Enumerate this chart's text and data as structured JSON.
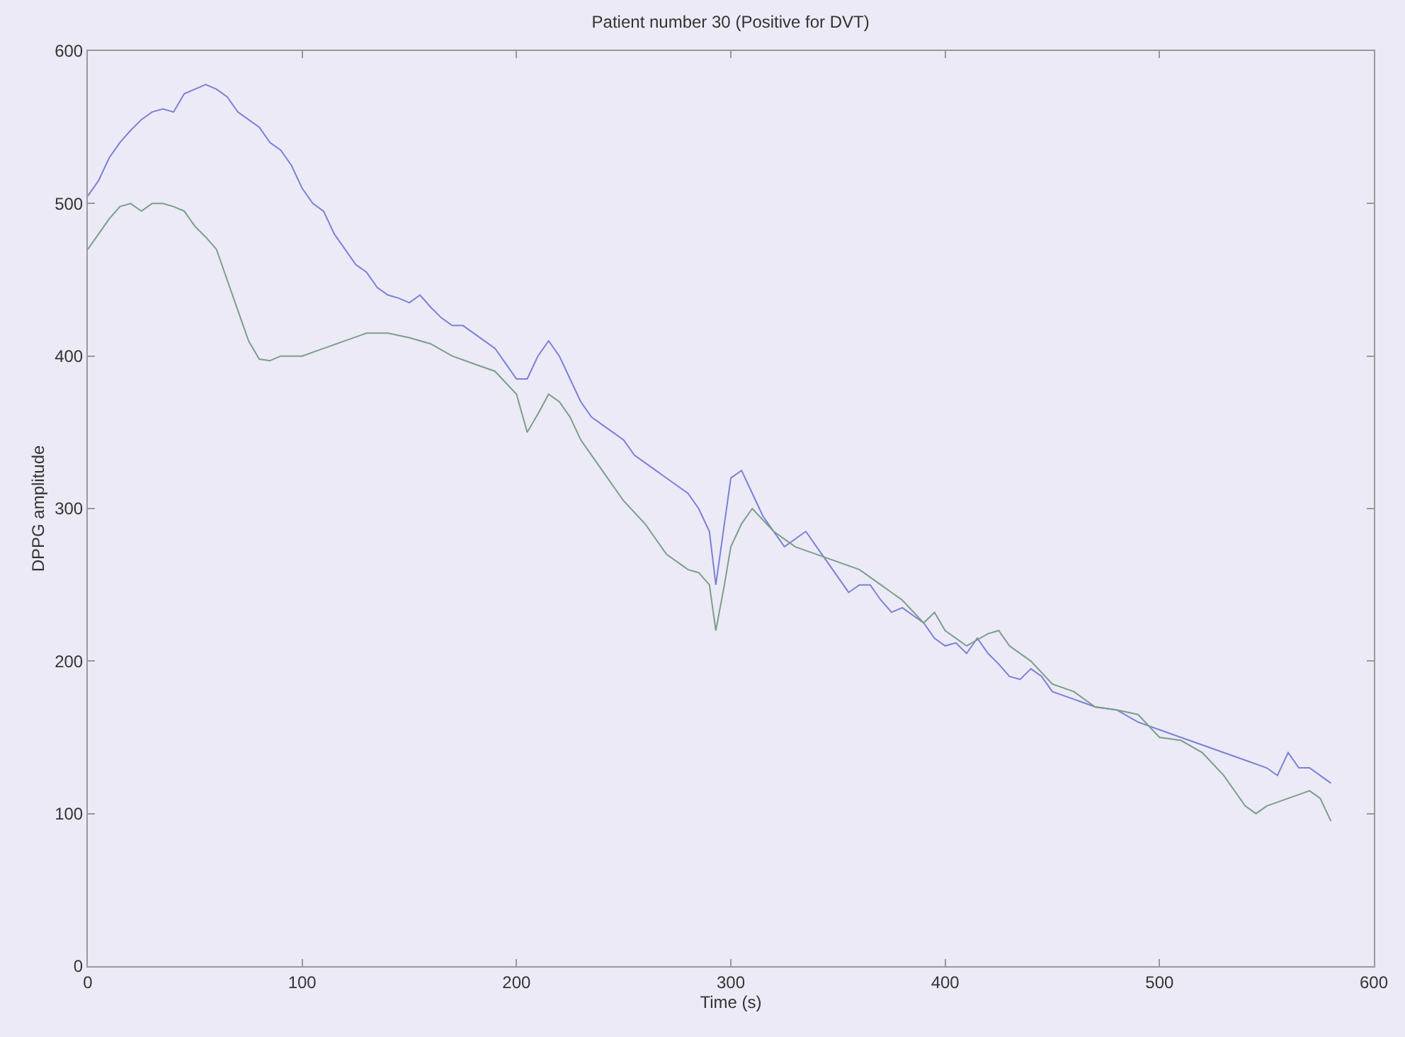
{
  "chart_data": {
    "type": "line",
    "title": "Patient number 30 (Positive for DVT)",
    "xlabel": "Time (s)",
    "ylabel": "DPPG amplitude",
    "xlim": [
      0,
      600
    ],
    "xticks": [
      0,
      100,
      200,
      300,
      400,
      500,
      600
    ],
    "ylim": [
      0,
      600
    ],
    "yticks": [
      0,
      100,
      200,
      300,
      400,
      500,
      600
    ],
    "grid": false,
    "marker": "none",
    "line_style": "solid",
    "series": [
      {
        "color": "#7a80d8",
        "x": [
          0,
          5,
          10,
          15,
          20,
          25,
          30,
          35,
          40,
          45,
          50,
          55,
          60,
          65,
          70,
          75,
          80,
          85,
          90,
          95,
          100,
          105,
          110,
          115,
          120,
          125,
          130,
          135,
          140,
          145,
          150,
          155,
          160,
          165,
          170,
          175,
          180,
          185,
          190,
          195,
          200,
          205,
          210,
          215,
          220,
          225,
          230,
          235,
          240,
          245,
          250,
          255,
          260,
          265,
          270,
          275,
          280,
          285,
          290,
          293,
          297,
          300,
          305,
          310,
          315,
          320,
          325,
          330,
          335,
          340,
          345,
          350,
          355,
          360,
          365,
          370,
          375,
          380,
          385,
          390,
          395,
          400,
          405,
          410,
          415,
          420,
          425,
          430,
          435,
          440,
          445,
          450,
          460,
          470,
          480,
          490,
          500,
          510,
          520,
          530,
          540,
          550,
          555,
          560,
          565,
          570,
          575,
          580
        ],
        "values": [
          505,
          515,
          530,
          540,
          548,
          555,
          560,
          562,
          560,
          572,
          575,
          578,
          575,
          570,
          560,
          555,
          550,
          540,
          535,
          525,
          510,
          500,
          495,
          480,
          470,
          460,
          455,
          445,
          440,
          438,
          435,
          440,
          432,
          425,
          420,
          420,
          415,
          410,
          405,
          395,
          385,
          385,
          400,
          410,
          400,
          385,
          370,
          360,
          355,
          350,
          345,
          335,
          330,
          325,
          320,
          315,
          310,
          300,
          285,
          250,
          290,
          320,
          325,
          310,
          295,
          285,
          275,
          280,
          285,
          275,
          265,
          255,
          245,
          250,
          250,
          240,
          232,
          235,
          230,
          225,
          215,
          210,
          212,
          205,
          215,
          205,
          198,
          190,
          188,
          195,
          190,
          180,
          175,
          170,
          168,
          160,
          155,
          150,
          145,
          140,
          135,
          130,
          125,
          140,
          130,
          130,
          125,
          120
        ]
      },
      {
        "color": "#7a9e8a",
        "x": [
          0,
          5,
          10,
          15,
          20,
          25,
          30,
          35,
          40,
          45,
          50,
          55,
          60,
          65,
          70,
          75,
          80,
          85,
          90,
          100,
          110,
          120,
          130,
          140,
          150,
          160,
          170,
          180,
          190,
          200,
          205,
          210,
          215,
          220,
          225,
          230,
          240,
          250,
          260,
          270,
          280,
          285,
          290,
          293,
          297,
          300,
          305,
          310,
          320,
          330,
          340,
          350,
          360,
          370,
          375,
          380,
          390,
          395,
          400,
          410,
          420,
          425,
          430,
          440,
          450,
          460,
          470,
          480,
          490,
          500,
          510,
          520,
          530,
          540,
          545,
          550,
          560,
          570,
          575,
          580
        ],
        "values": [
          470,
          480,
          490,
          498,
          500,
          495,
          500,
          500,
          498,
          495,
          485,
          478,
          470,
          450,
          430,
          410,
          398,
          397,
          400,
          400,
          405,
          410,
          415,
          415,
          412,
          408,
          400,
          395,
          390,
          375,
          350,
          362,
          375,
          370,
          360,
          345,
          325,
          305,
          290,
          270,
          260,
          258,
          250,
          220,
          250,
          275,
          290,
          300,
          285,
          275,
          270,
          265,
          260,
          250,
          245,
          240,
          225,
          232,
          220,
          210,
          218,
          220,
          210,
          200,
          185,
          180,
          170,
          168,
          165,
          150,
          148,
          140,
          125,
          105,
          100,
          105,
          110,
          115,
          110,
          95
        ]
      }
    ]
  }
}
